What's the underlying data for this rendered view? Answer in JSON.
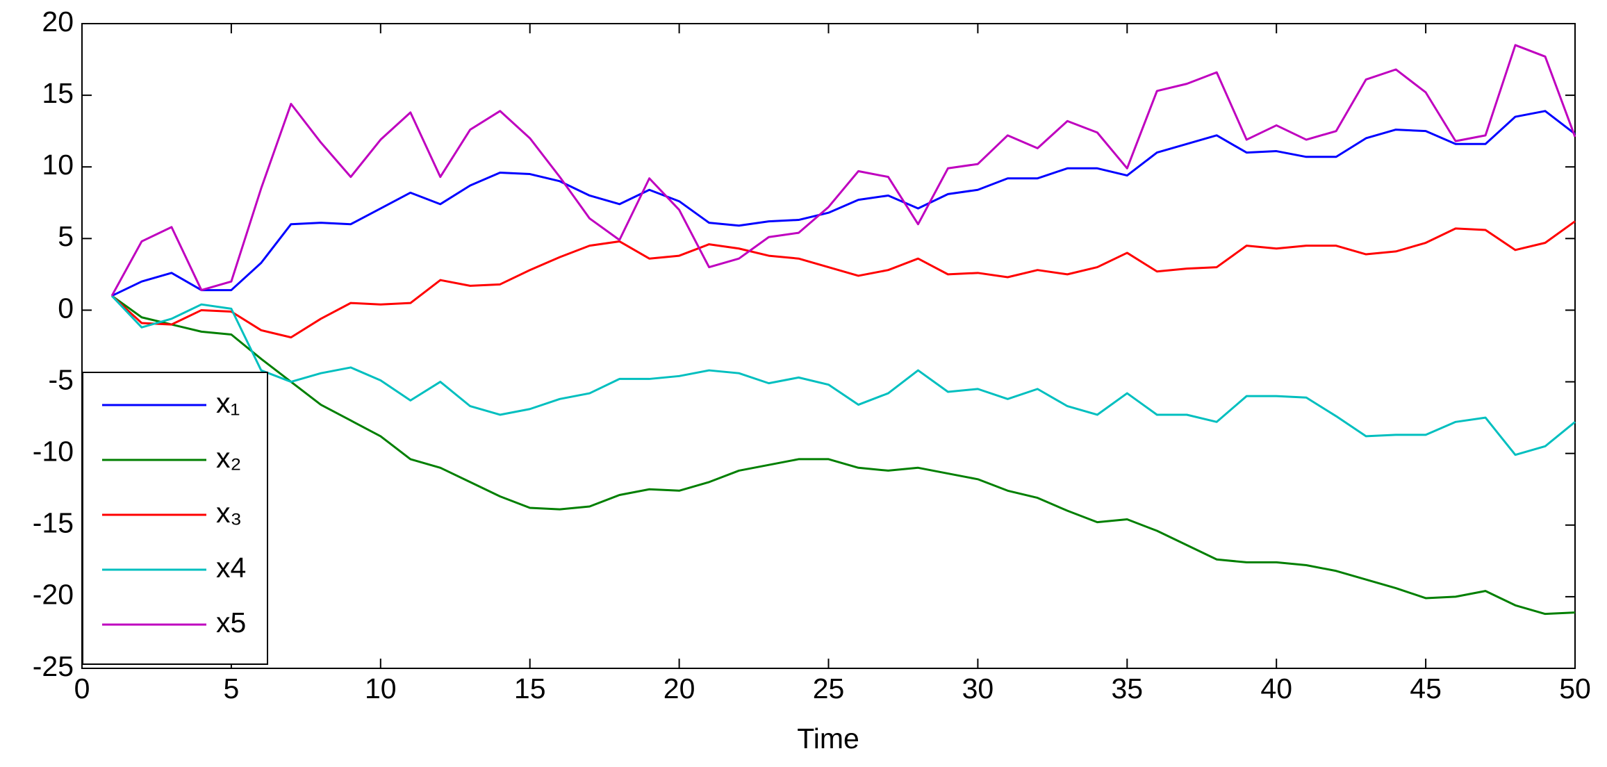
{
  "chart_data": {
    "type": "line",
    "xlabel": "Time",
    "x": [
      1,
      2,
      3,
      4,
      5,
      6,
      7,
      8,
      9,
      10,
      11,
      12,
      13,
      14,
      15,
      16,
      17,
      18,
      19,
      20,
      21,
      22,
      23,
      24,
      25,
      26,
      27,
      28,
      29,
      30,
      31,
      32,
      33,
      34,
      35,
      36,
      37,
      38,
      39,
      40,
      41,
      42,
      43,
      44,
      45,
      46,
      47,
      48,
      49,
      50
    ],
    "series": [
      {
        "name": "x₁",
        "color": "#0000ff",
        "values": [
          1,
          2,
          2.6,
          1.4,
          1.4,
          3.3,
          6,
          6.1,
          6,
          7.1,
          8.2,
          7.4,
          8.7,
          9.6,
          9.5,
          9,
          8,
          7.4,
          8.4,
          7.6,
          6.1,
          5.9,
          6.2,
          6.3,
          6.8,
          7.7,
          8,
          7.1,
          8.1,
          8.4,
          9.2,
          9.2,
          9.9,
          9.9,
          9.4,
          11,
          11.6,
          12.2,
          11,
          11.1,
          10.7,
          10.7,
          12,
          12.6,
          12.5,
          11.6,
          11.6,
          13.5,
          13.9,
          12.3
        ]
      },
      {
        "name": "x₂",
        "color": "#007f00",
        "values": [
          1,
          -0.5,
          -1,
          -1.5,
          -1.7,
          -3.4,
          -5,
          -6.6,
          -7.7,
          -8.8,
          -10.4,
          -11,
          -12,
          -13,
          -13.8,
          -13.9,
          -13.7,
          -12.9,
          -12.5,
          -12.6,
          -12,
          -11.2,
          -10.8,
          -10.4,
          -10.4,
          -11,
          -11.2,
          -11,
          -11.4,
          -11.8,
          -12.6,
          -13.1,
          -14,
          -14.8,
          -14.6,
          -15.4,
          -16.4,
          -17.4,
          -17.6,
          -17.6,
          -17.8,
          -18.2,
          -18.8,
          -19.4,
          -20.1,
          -20,
          -19.6,
          -20.6,
          -21.2,
          -21.1
        ]
      },
      {
        "name": "x₃",
        "color": "#ff0000",
        "values": [
          1,
          -0.9,
          -1,
          0,
          -0.1,
          -1.4,
          -1.9,
          -0.6,
          0.5,
          0.4,
          0.5,
          2.1,
          1.7,
          1.8,
          2.8,
          3.7,
          4.5,
          4.8,
          3.6,
          3.8,
          4.6,
          4.3,
          3.8,
          3.6,
          3,
          2.4,
          2.8,
          3.6,
          2.5,
          2.6,
          2.3,
          2.8,
          2.5,
          3,
          4,
          2.7,
          2.9,
          3,
          4.5,
          4.3,
          4.5,
          4.5,
          3.9,
          4.1,
          4.7,
          5.7,
          5.6,
          4.2,
          4.7,
          6.2
        ]
      },
      {
        "name": "x4",
        "color": "#00bfbf",
        "values": [
          1,
          -1.2,
          -0.6,
          0.4,
          0.1,
          -4.2,
          -5,
          -4.4,
          -4,
          -4.9,
          -6.3,
          -5,
          -6.7,
          -7.3,
          -6.9,
          -6.2,
          -5.8,
          -4.8,
          -4.8,
          -4.6,
          -4.2,
          -4.4,
          -5.1,
          -4.7,
          -5.2,
          -6.6,
          -5.8,
          -4.2,
          -5.7,
          -5.5,
          -6.2,
          -5.5,
          -6.7,
          -7.3,
          -5.8,
          -7.3,
          -7.3,
          -7.8,
          -6,
          -6,
          -6.1,
          -7.4,
          -8.8,
          -8.7,
          -8.7,
          -7.8,
          -7.5,
          -10.1,
          -9.5,
          -7.8
        ]
      },
      {
        "name": "x5",
        "color": "#bf00bf",
        "values": [
          1,
          4.8,
          5.8,
          1.4,
          2,
          8.5,
          14.4,
          11.7,
          9.3,
          11.9,
          13.8,
          9.3,
          12.6,
          13.9,
          12,
          9.3,
          6.4,
          4.9,
          9.2,
          7,
          3,
          3.6,
          5.1,
          5.4,
          7.2,
          9.7,
          9.3,
          6,
          9.9,
          10.2,
          12.2,
          11.3,
          13.2,
          12.4,
          9.9,
          15.3,
          15.8,
          16.6,
          11.9,
          12.9,
          11.9,
          12.5,
          16.1,
          16.8,
          15.2,
          11.8,
          12.2,
          18.5,
          17.7,
          12.1
        ]
      }
    ],
    "xlim": [
      0,
      50
    ],
    "xticks": [
      0,
      5,
      10,
      15,
      20,
      25,
      30,
      35,
      40,
      45,
      50
    ],
    "ylim": [
      -25,
      20
    ],
    "yticks": [
      -25,
      -20,
      -15,
      -10,
      -5,
      0,
      5,
      10,
      15,
      20
    ],
    "grid": false,
    "legend": "lower left"
  }
}
